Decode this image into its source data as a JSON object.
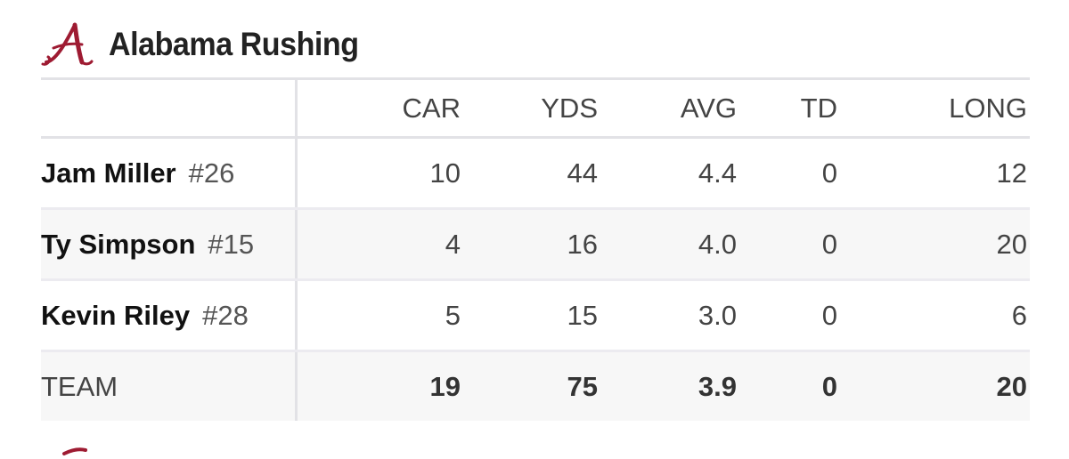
{
  "header": {
    "title": "Alabama Rushing",
    "logo_icon": "alabama-script-a-icon",
    "logo_color": "#9e1b32"
  },
  "table": {
    "columns": [
      "CAR",
      "YDS",
      "AVG",
      "TD",
      "LONG"
    ],
    "rows": [
      {
        "name": "Jam Miller",
        "number": "#26",
        "car": "10",
        "yds": "44",
        "avg": "4.4",
        "td": "0",
        "long": "12"
      },
      {
        "name": "Ty Simpson",
        "number": "#15",
        "car": "4",
        "yds": "16",
        "avg": "4.0",
        "td": "0",
        "long": "20"
      },
      {
        "name": "Kevin Riley",
        "number": "#28",
        "car": "5",
        "yds": "15",
        "avg": "3.0",
        "td": "0",
        "long": "6"
      }
    ],
    "team": {
      "label": "TEAM",
      "car": "19",
      "yds": "75",
      "avg": "3.9",
      "td": "0",
      "long": "20"
    }
  }
}
